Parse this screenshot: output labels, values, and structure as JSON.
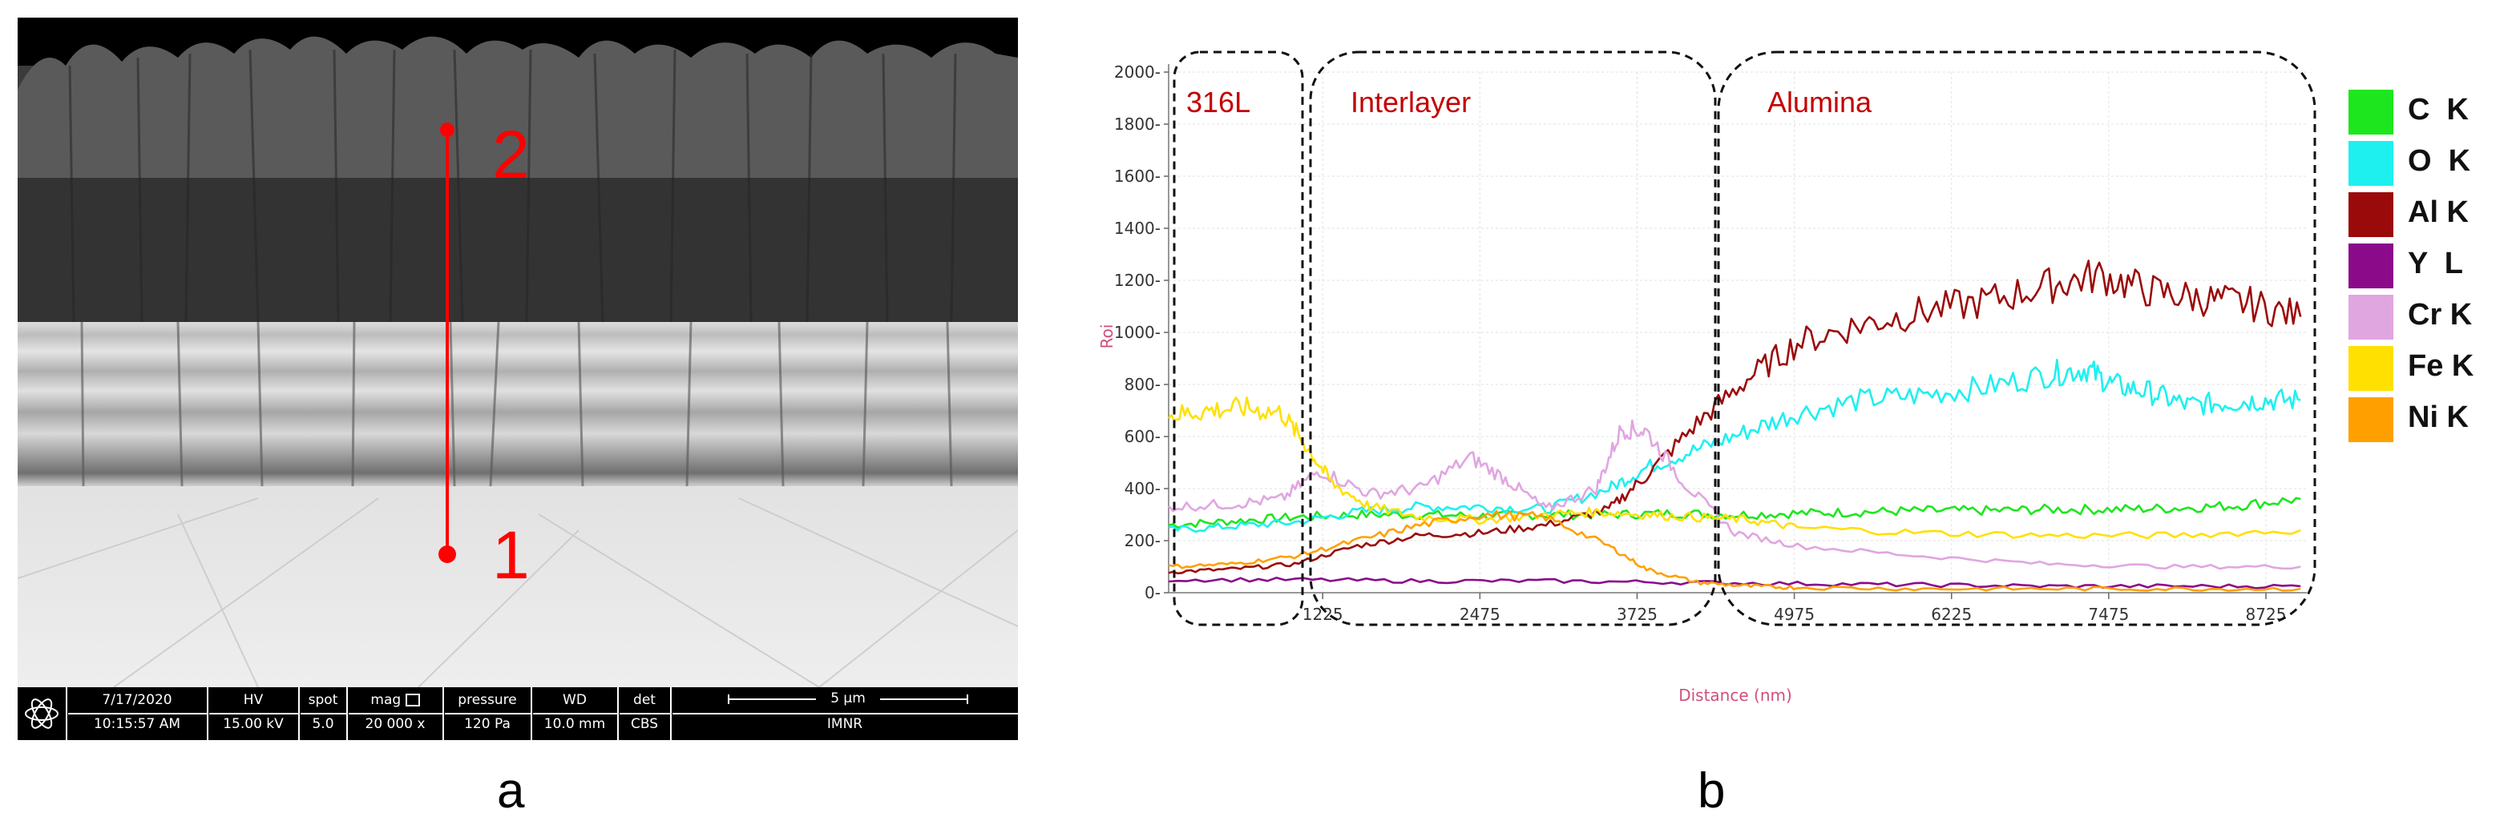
{
  "panel_a": {
    "letter": "a",
    "markers": [
      {
        "label": "1"
      },
      {
        "label": "2"
      }
    ],
    "databar": {
      "date": "7/17/2020",
      "time": "10:15:57 AM",
      "hv_label": "HV",
      "hv_value": "15.00 kV",
      "spot_label": "spot",
      "spot_value": "5.0",
      "mag_label": "mag",
      "mag_value": "20 000 x",
      "pressure_label": "pressure",
      "pressure_value": "120 Pa",
      "wd_label": "WD",
      "wd_value": "10.0 mm",
      "det_label": "det",
      "det_value": "CBS",
      "scale_label": "5 µm",
      "lab": "IMNR"
    }
  },
  "panel_b": {
    "letter": "b",
    "region_labels": [
      "316L",
      "Interlayer",
      "Alumina"
    ],
    "colors": {
      "C K": "#1ee61e",
      "O K": "#1ef0f0",
      "Al K": "#9b0a0a",
      "Y L": "#8a0a8a",
      "Cr K": "#e0a6e0",
      "Fe K": "#ffe000",
      "Ni K": "#ffa000"
    },
    "legend": [
      {
        "label": "C  K",
        "color": "#1ee61e"
      },
      {
        "label": "O  K",
        "color": "#1ef0f0"
      },
      {
        "label": "Al K",
        "color": "#9b0a0a"
      },
      {
        "label": "Y  L",
        "color": "#8a0a8a"
      },
      {
        "label": "Cr K",
        "color": "#e0a6e0"
      },
      {
        "label": "Fe K",
        "color": "#ffe000"
      },
      {
        "label": "Ni K",
        "color": "#ffa000"
      }
    ]
  },
  "chart_data": {
    "type": "line",
    "title": "",
    "xlabel": "Distance (nm)",
    "ylabel": "Roi",
    "xlim": [
      0,
      9050
    ],
    "ylim": [
      0,
      2000
    ],
    "x_ticks": [
      1225,
      2475,
      3725,
      4975,
      6225,
      7475,
      8725
    ],
    "y_ticks": [
      0,
      200,
      400,
      600,
      800,
      1000,
      1200,
      1400,
      1600,
      1800,
      2000
    ],
    "grid": true,
    "legend_position": "right",
    "series": [
      {
        "name": "C K",
        "x": [
          0,
          500,
          1000,
          1500,
          2000,
          2500,
          3000,
          3500,
          4000,
          4500,
          5000,
          5500,
          6000,
          6500,
          7000,
          7500,
          8000,
          8500,
          9000
        ],
        "y": [
          260,
          275,
          290,
          300,
          300,
          295,
          300,
          300,
          305,
          300,
          305,
          310,
          315,
          315,
          320,
          320,
          325,
          335,
          360
        ]
      },
      {
        "name": "O K",
        "x": [
          0,
          500,
          1000,
          1500,
          2000,
          2500,
          3000,
          3500,
          3800,
          4200,
          4600,
          5000,
          5500,
          6000,
          6500,
          7000,
          7300,
          7500,
          7800,
          8100,
          8400,
          8700,
          9000
        ],
        "y": [
          240,
          255,
          270,
          310,
          330,
          330,
          320,
          400,
          480,
          550,
          620,
          690,
          740,
          760,
          790,
          840,
          860,
          800,
          770,
          720,
          730,
          740,
          740
        ]
      },
      {
        "name": "Al K",
        "x": [
          0,
          500,
          1000,
          1500,
          2000,
          2500,
          3000,
          3500,
          3800,
          4200,
          4600,
          5000,
          5500,
          6000,
          6500,
          7000,
          7400,
          7800,
          8200,
          8600,
          9000
        ],
        "y": [
          80,
          90,
          110,
          180,
          220,
          230,
          260,
          320,
          450,
          650,
          820,
          960,
          1030,
          1080,
          1120,
          1180,
          1220,
          1160,
          1130,
          1110,
          1060
        ]
      },
      {
        "name": "Y L",
        "x": [
          0,
          1000,
          2000,
          3000,
          4000,
          5000,
          6000,
          7000,
          8000,
          9000
        ],
        "y": [
          50,
          50,
          45,
          45,
          40,
          35,
          30,
          25,
          25,
          25
        ]
      },
      {
        "name": "Cr K",
        "x": [
          0,
          500,
          900,
          1200,
          1600,
          2000,
          2400,
          2700,
          3000,
          3400,
          3600,
          3800,
          4100,
          4500,
          5000,
          6000,
          7000,
          8000,
          9000
        ],
        "y": [
          330,
          340,
          360,
          470,
          380,
          400,
          520,
          430,
          320,
          400,
          630,
          620,
          420,
          230,
          180,
          140,
          110,
          100,
          100
        ]
      },
      {
        "name": "Fe K",
        "x": [
          0,
          300,
          600,
          900,
          1100,
          1300,
          1600,
          2000,
          2500,
          3000,
          3400,
          3800,
          4200,
          4600,
          5000,
          6000,
          7000,
          8000,
          9000
        ],
        "y": [
          680,
          700,
          710,
          690,
          560,
          420,
          330,
          290,
          280,
          300,
          310,
          300,
          290,
          280,
          250,
          230,
          220,
          220,
          240
        ]
      },
      {
        "name": "Ni K",
        "x": [
          0,
          500,
          1000,
          1500,
          2000,
          2500,
          3000,
          3500,
          3800,
          4200,
          4600,
          5000,
          6000,
          7000,
          8000,
          9000
        ],
        "y": [
          100,
          110,
          140,
          200,
          260,
          300,
          290,
          180,
          90,
          40,
          25,
          20,
          15,
          15,
          15,
          15
        ]
      }
    ]
  }
}
